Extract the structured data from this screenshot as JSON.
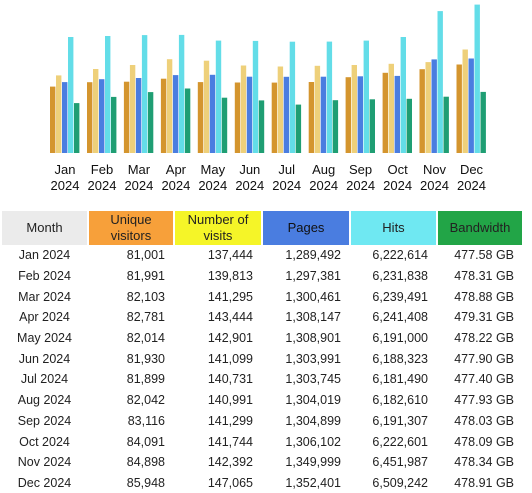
{
  "colors": {
    "month": "#ebebeb",
    "unique_visitors": "#f7a03a",
    "number_of_visits": "#f5f528",
    "pages": "#4a7de0",
    "hits": "#6fe8f2",
    "bandwidth": "#22a547"
  },
  "chart_data": {
    "type": "bar",
    "categories": [
      [
        "Jan",
        "2024"
      ],
      [
        "Feb",
        "2024"
      ],
      [
        "Mar",
        "2024"
      ],
      [
        "Apr",
        "2024"
      ],
      [
        "May",
        "2024"
      ],
      [
        "Jun",
        "2024"
      ],
      [
        "Jul",
        "2024"
      ],
      [
        "Aug",
        "2024"
      ],
      [
        "Sep",
        "2024"
      ],
      [
        "Oct",
        "2024"
      ],
      [
        "Nov",
        "2024"
      ],
      [
        "Dec",
        "2024"
      ]
    ],
    "series": [
      {
        "key": "unique_visitors",
        "color": "#d4952e",
        "values": [
          81001,
          81991,
          82103,
          82781,
          82014,
          81930,
          81899,
          82042,
          83116,
          84091,
          84898,
          85948
        ]
      },
      {
        "key": "number_of_visits",
        "color": "#eed07a",
        "values": [
          137444,
          139813,
          141295,
          143444,
          142901,
          141099,
          140731,
          140991,
          141299,
          141744,
          142392,
          147065
        ]
      },
      {
        "key": "pages",
        "color": "#4a7de0",
        "values": [
          1289492,
          1297381,
          1300461,
          1308147,
          1308901,
          1303991,
          1303745,
          1304019,
          1304899,
          1306102,
          1349999,
          1352401
        ]
      },
      {
        "key": "hits",
        "color": "#63dde8",
        "values": [
          6222614,
          6231838,
          6239491,
          6241408,
          6191000,
          6188323,
          6181490,
          6182610,
          6191307,
          6222601,
          6451987,
          6509242
        ]
      },
      {
        "key": "bandwidth",
        "color": "#1f9e73",
        "values": [
          477.58,
          478.31,
          478.88,
          479.31,
          478.22,
          477.9,
          477.4,
          477.93,
          478.03,
          478.09,
          478.34,
          478.91
        ]
      }
    ]
  },
  "table": {
    "headers": {
      "month": "Month",
      "unique_visitors": [
        "Unique",
        "visitors"
      ],
      "number_of_visits": [
        "Number of",
        "visits"
      ],
      "pages": "Pages",
      "hits": "Hits",
      "bandwidth": "Bandwidth"
    },
    "rows": [
      {
        "month": "Jan 2024",
        "unique_visitors": "81,001",
        "number_of_visits": "137,444",
        "pages": "1,289,492",
        "hits": "6,222,614",
        "bandwidth": "477.58 GB"
      },
      {
        "month": "Feb 2024",
        "unique_visitors": "81,991",
        "number_of_visits": "139,813",
        "pages": "1,297,381",
        "hits": "6,231,838",
        "bandwidth": "478.31 GB"
      },
      {
        "month": "Mar 2024",
        "unique_visitors": "82,103",
        "number_of_visits": "141,295",
        "pages": "1,300,461",
        "hits": "6,239,491",
        "bandwidth": "478.88 GB"
      },
      {
        "month": "Apr 2024",
        "unique_visitors": "82,781",
        "number_of_visits": "143,444",
        "pages": "1,308,147",
        "hits": "6,241,408",
        "bandwidth": "479.31 GB"
      },
      {
        "month": "May 2024",
        "unique_visitors": "82,014",
        "number_of_visits": "142,901",
        "pages": "1,308,901",
        "hits": "6,191,000",
        "bandwidth": "478.22 GB"
      },
      {
        "month": "Jun 2024",
        "unique_visitors": "81,930",
        "number_of_visits": "141,099",
        "pages": "1,303,991",
        "hits": "6,188,323",
        "bandwidth": "477.90 GB"
      },
      {
        "month": "Jul 2024",
        "unique_visitors": "81,899",
        "number_of_visits": "140,731",
        "pages": "1,303,745",
        "hits": "6,181,490",
        "bandwidth": "477.40 GB"
      },
      {
        "month": "Aug 2024",
        "unique_visitors": "82,042",
        "number_of_visits": "140,991",
        "pages": "1,304,019",
        "hits": "6,182,610",
        "bandwidth": "477.93 GB"
      },
      {
        "month": "Sep 2024",
        "unique_visitors": "83,116",
        "number_of_visits": "141,299",
        "pages": "1,304,899",
        "hits": "6,191,307",
        "bandwidth": "478.03 GB"
      },
      {
        "month": "Oct 2024",
        "unique_visitors": "84,091",
        "number_of_visits": "141,744",
        "pages": "1,306,102",
        "hits": "6,222,601",
        "bandwidth": "478.09 GB"
      },
      {
        "month": "Nov 2024",
        "unique_visitors": "84,898",
        "number_of_visits": "142,392",
        "pages": "1,349,999",
        "hits": "6,451,987",
        "bandwidth": "478.34 GB"
      },
      {
        "month": "Dec 2024",
        "unique_visitors": "85,948",
        "number_of_visits": "147,065",
        "pages": "1,352,401",
        "hits": "6,509,242",
        "bandwidth": "478.91 GB"
      }
    ]
  }
}
